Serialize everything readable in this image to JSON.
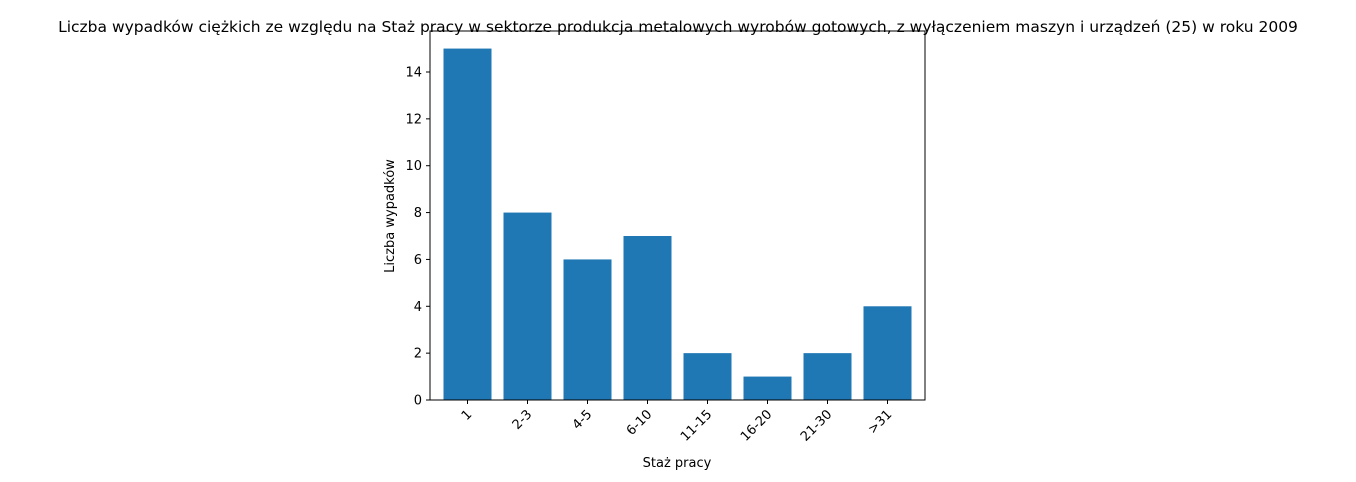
{
  "chart_data": {
    "type": "bar",
    "title": "Liczba wypadków ciężkich ze względu na Staż pracy w sektorze produkcja metalowych wyrobów gotowych, z wyłączeniem maszyn i urządzeń (25) w roku 2009",
    "xlabel": "Staż pracy",
    "ylabel": "Liczba wypadków",
    "categories": [
      "1",
      "2-3",
      "4-5",
      "6-10",
      "11-15",
      "16-20",
      "21-30",
      ">31"
    ],
    "values": [
      15,
      8,
      6,
      7,
      2,
      1,
      2,
      4
    ],
    "ylim": [
      0,
      15.75
    ],
    "yticks": [
      0,
      2,
      4,
      6,
      8,
      10,
      12,
      14
    ],
    "bar_color": "#1f77b4",
    "grid": false,
    "legend": "none"
  }
}
